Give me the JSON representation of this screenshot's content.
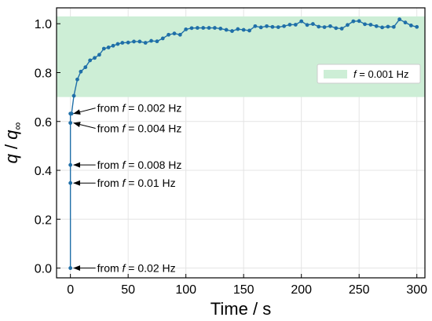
{
  "chart_data": {
    "type": "line",
    "xlabel": "Time / s",
    "ylabel_parts": {
      "q": "q",
      "sep": " / ",
      "qinf": "q",
      "sub": "∞"
    },
    "xlim": [
      -12,
      307
    ],
    "ylim": [
      -0.04,
      1.065
    ],
    "x_ticks": [
      0,
      50,
      100,
      150,
      200,
      250,
      300
    ],
    "x_tick_labels": [
      "0",
      "50",
      "100",
      "150",
      "200",
      "250",
      "300"
    ],
    "y_ticks": [
      0.0,
      0.2,
      0.4,
      0.6,
      0.8,
      1.0
    ],
    "y_tick_labels": [
      "0.0",
      "0.2",
      "0.4",
      "0.6",
      "0.8",
      "1.0"
    ],
    "grid": true,
    "line_color": "#1f6fa8",
    "band": {
      "y_from": 0.7,
      "y_to": 1.03,
      "color": "#cdeed6"
    },
    "legend": {
      "placement": "right",
      "prefix": "",
      "f": "f",
      "suffix": " = 0.001 Hz"
    },
    "series": [
      {
        "x": [
          0,
          0,
          0,
          0,
          0,
          1,
          3,
          6,
          9,
          13,
          17,
          21,
          25,
          29,
          33,
          37,
          41,
          45,
          50,
          55,
          60,
          65,
          70,
          75,
          80,
          85,
          90,
          95,
          100,
          105,
          110,
          115,
          120,
          125,
          130,
          135,
          140,
          145,
          150,
          155,
          160,
          165,
          170,
          175,
          180,
          185,
          190,
          195,
          200,
          205,
          210,
          215,
          220,
          225,
          230,
          235,
          240,
          245,
          250,
          255,
          260,
          265,
          270,
          275,
          280,
          285,
          290,
          295,
          300
        ],
        "y": [
          0.0,
          0.348,
          0.422,
          0.594,
          0.632,
          0.632,
          0.705,
          0.772,
          0.804,
          0.822,
          0.85,
          0.86,
          0.873,
          0.898,
          0.903,
          0.91,
          0.917,
          0.922,
          0.923,
          0.927,
          0.927,
          0.922,
          0.93,
          0.928,
          0.94,
          0.955,
          0.96,
          0.955,
          0.977,
          0.982,
          0.983,
          0.983,
          0.983,
          0.983,
          0.98,
          0.975,
          0.97,
          0.978,
          0.975,
          0.972,
          0.99,
          0.985,
          0.99,
          0.987,
          0.986,
          0.99,
          0.996,
          0.996,
          1.01,
          0.995,
          0.999,
          0.988,
          0.986,
          0.99,
          0.982,
          0.98,
          0.995,
          1.01,
          1.011,
          0.998,
          0.996,
          0.99,
          0.985,
          0.988,
          0.987,
          1.018,
          1.005,
          0.993,
          0.987
        ]
      }
    ],
    "annotations": [
      {
        "x": 0,
        "y": 0.632,
        "prefix": "from ",
        "f": "f",
        "suffix": " = 0.002 Hz",
        "text_y": 0.655
      },
      {
        "x": 0,
        "y": 0.594,
        "prefix": "from ",
        "f": "f",
        "suffix": " = 0.004 Hz",
        "text_y": 0.572
      },
      {
        "x": 0,
        "y": 0.422,
        "prefix": "from ",
        "f": "f",
        "suffix": " = 0.008 Hz",
        "text_y": 0.422
      },
      {
        "x": 0,
        "y": 0.348,
        "prefix": "from ",
        "f": "f",
        "suffix": " = 0.01 Hz",
        "text_y": 0.348
      },
      {
        "x": 0,
        "y": 0.0,
        "prefix": "from ",
        "f": "f",
        "suffix": " = 0.02 Hz",
        "text_y": 0.0
      }
    ]
  }
}
